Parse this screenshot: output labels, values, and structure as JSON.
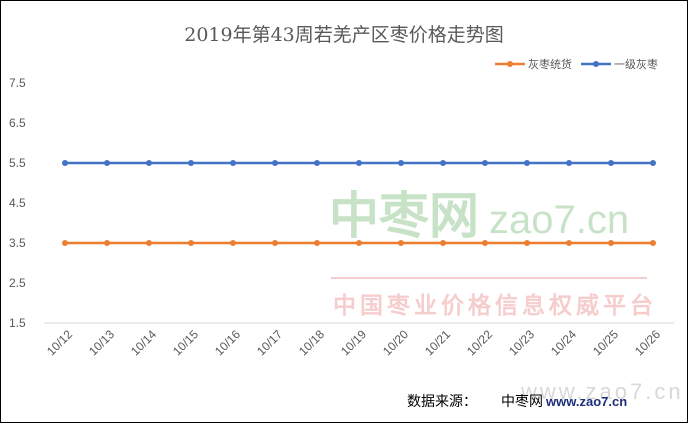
{
  "chart_data": {
    "type": "line",
    "title": "2019年第43周若羌产区枣价格走势图",
    "categories": [
      "10/12",
      "10/13",
      "10/14",
      "10/15",
      "10/16",
      "10/17",
      "10/18",
      "10/19",
      "10/20",
      "10/21",
      "10/22",
      "10/23",
      "10/24",
      "10/25",
      "10/26"
    ],
    "series": [
      {
        "name": "灰枣统货",
        "color": "#ed7d31",
        "values": [
          3.5,
          3.5,
          3.5,
          3.5,
          3.5,
          3.5,
          3.5,
          3.5,
          3.5,
          3.5,
          3.5,
          3.5,
          3.5,
          3.5,
          3.5
        ]
      },
      {
        "name": "一级灰枣",
        "color": "#4472c4",
        "values": [
          5.5,
          5.5,
          5.5,
          5.5,
          5.5,
          5.5,
          5.5,
          5.5,
          5.5,
          5.5,
          5.5,
          5.5,
          5.5,
          5.5,
          5.5
        ]
      }
    ],
    "yticks": [
      "1.5",
      "2.5",
      "3.5",
      "4.5",
      "5.5",
      "6.5",
      "7.5"
    ],
    "ylim": [
      1.5,
      7.5
    ],
    "grid": false,
    "legend_position": "top-right",
    "xlabel": "",
    "ylabel": ""
  },
  "source": {
    "label": "数据来源：",
    "name": "中枣网",
    "url": "www.zao7.cn"
  },
  "watermark": {
    "logo": "中枣网",
    "domain": "zao7.cn",
    "slogan": "中国枣业价格信息权威平台",
    "url": "www.zao7.cn"
  }
}
